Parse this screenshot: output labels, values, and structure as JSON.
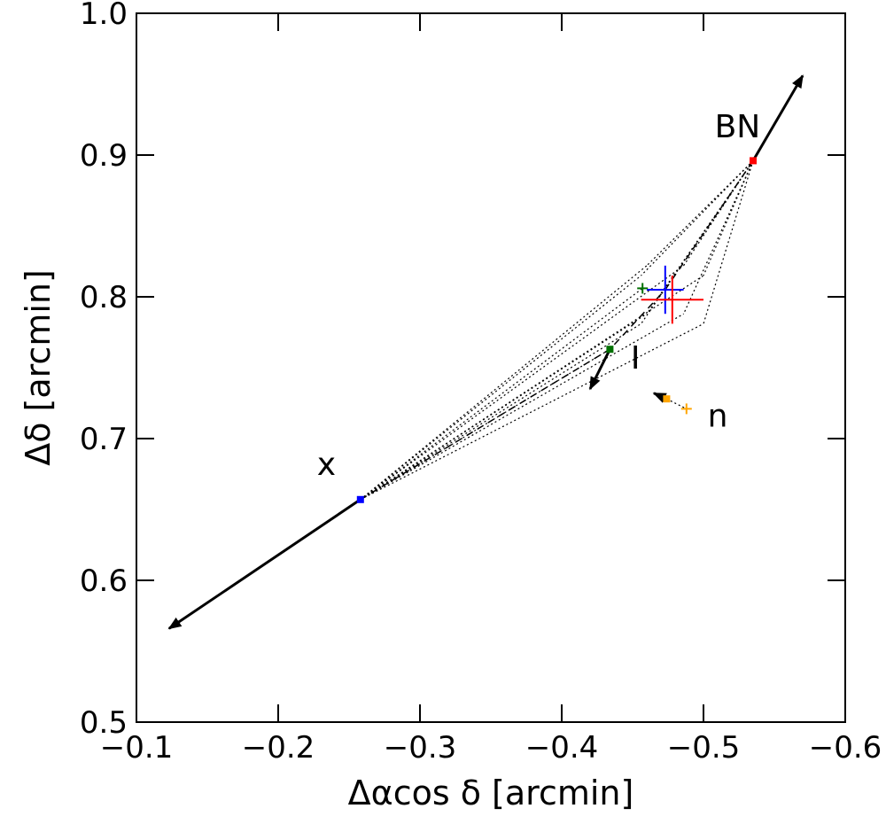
{
  "chart_data": {
    "type": "scatter",
    "xlabel": "Δαcos δ [arcmin]",
    "ylabel": "Δδ [arcmin]",
    "xlim": [
      -0.1,
      -0.6
    ],
    "ylim": [
      0.5,
      1.0
    ],
    "x_axis_inverted": true,
    "grid": false,
    "xticks": [
      "−0.1",
      "−0.2",
      "−0.3",
      "−0.4",
      "−0.5",
      "−0.6"
    ],
    "yticks": [
      "0.5",
      "0.6",
      "0.7",
      "0.8",
      "0.9",
      "1.0"
    ],
    "xtick_values": [
      -0.1,
      -0.2,
      -0.3,
      -0.4,
      -0.5,
      -0.6
    ],
    "ytick_values": [
      0.5,
      0.6,
      0.7,
      0.8,
      0.9,
      1.0
    ],
    "sources": [
      {
        "label": "BN",
        "color": "#ff0000",
        "x": -0.535,
        "y": 0.896,
        "arrow_to": {
          "x": -0.57,
          "y": 0.956
        },
        "label_pos": {
          "x": -0.524,
          "y": 0.92
        }
      },
      {
        "label": "x",
        "color": "#0000ff",
        "x": -0.258,
        "y": 0.657,
        "arrow_to": {
          "x": -0.123,
          "y": 0.566
        },
        "label_pos": {
          "x": -0.234,
          "y": 0.682
        }
      },
      {
        "label": "I",
        "color": "#007000",
        "x": -0.434,
        "y": 0.763,
        "second_point": {
          "x": -0.457,
          "y": 0.806
        },
        "arrow_to": {
          "x": -0.42,
          "y": 0.735
        },
        "label_pos": {
          "x": -0.452,
          "y": 0.757
        }
      },
      {
        "label": "n",
        "color": "#ffa500",
        "x": -0.474,
        "y": 0.728,
        "second_point": {
          "x": -0.488,
          "y": 0.721
        },
        "arrow_to": {
          "x": -0.465,
          "y": 0.732
        },
        "label_pos": {
          "x": -0.51,
          "y": 0.716
        }
      }
    ],
    "error_crosses": [
      {
        "color": "#0000ff",
        "x": -0.473,
        "y": 0.805,
        "xerr": 0.013,
        "yerr": 0.017
      },
      {
        "color": "#ff0000",
        "x": -0.478,
        "y": 0.798,
        "xerr": 0.022,
        "yerr": 0.017
      }
    ]
  }
}
